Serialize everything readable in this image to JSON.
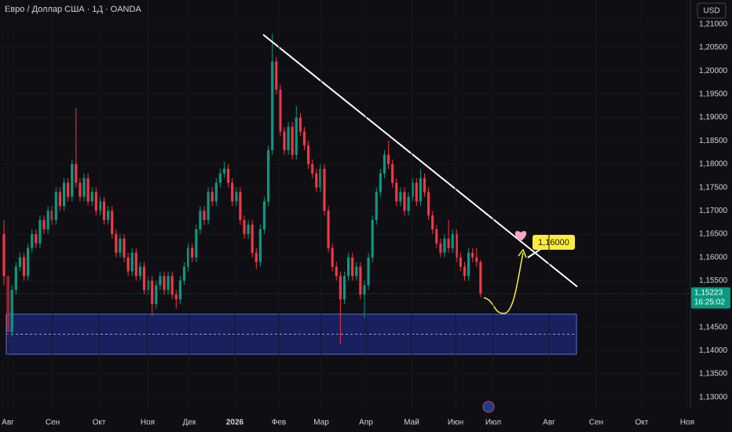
{
  "chart_data": {
    "type": "candlestick",
    "title": "Евро / Доллар США · 1Д · OANDA",
    "currency": "USD",
    "up_color": "#089981",
    "down_color": "#f23645",
    "last_price_label": "1,15223",
    "countdown": "16:25:02",
    "target_label": "1,16000",
    "xlabels": [
      "Авг",
      "Сен",
      "Окт",
      "Ноя",
      "Дек",
      "2026",
      "Фев",
      "Мар",
      "Апр",
      "Май",
      "Июн",
      "Июл",
      "Авг",
      "Сен",
      "Окт",
      "Ноя"
    ],
    "ylim": [
      1.1276,
      1.2152
    ],
    "yticks": [
      {
        "value": 1.13,
        "label": "1,13000"
      },
      {
        "value": 1.135,
        "label": "1,13500"
      },
      {
        "value": 1.14,
        "label": "1,14000"
      },
      {
        "value": 1.145,
        "label": "1,14500"
      },
      {
        "value": 1.15,
        "label": "1,15000"
      },
      {
        "value": 1.155,
        "label": "1,15500"
      },
      {
        "value": 1.16,
        "label": "1,16000"
      },
      {
        "value": 1.165,
        "label": "1,16500"
      },
      {
        "value": 1.17,
        "label": "1,17000"
      },
      {
        "value": 1.175,
        "label": "1,17500"
      },
      {
        "value": 1.18,
        "label": "1,18000"
      },
      {
        "value": 1.185,
        "label": "1,18500"
      },
      {
        "value": 1.19,
        "label": "1,19000"
      },
      {
        "value": 1.195,
        "label": "1,19500"
      },
      {
        "value": 1.2,
        "label": "1,20000"
      },
      {
        "value": 1.205,
        "label": "1,20500"
      },
      {
        "value": 1.21,
        "label": "1,21000"
      }
    ],
    "candles": [
      [
        1.165,
        1.168,
        1.154,
        1.156
      ],
      [
        1.156,
        1.157,
        1.141,
        1.144
      ],
      [
        1.144,
        1.154,
        1.143,
        1.153
      ],
      [
        1.153,
        1.159,
        1.152,
        1.158
      ],
      [
        1.158,
        1.161,
        1.157,
        1.16
      ],
      [
        1.16,
        1.161,
        1.155,
        1.156
      ],
      [
        1.156,
        1.163,
        1.155,
        1.162
      ],
      [
        1.162,
        1.166,
        1.161,
        1.165
      ],
      [
        1.165,
        1.166,
        1.162,
        1.163
      ],
      [
        1.163,
        1.169,
        1.162,
        1.168
      ],
      [
        1.168,
        1.169,
        1.165,
        1.166
      ],
      [
        1.166,
        1.171,
        1.165,
        1.17
      ],
      [
        1.17,
        1.171,
        1.167,
        1.168
      ],
      [
        1.168,
        1.175,
        1.167,
        1.174
      ],
      [
        1.174,
        1.175,
        1.17,
        1.171
      ],
      [
        1.171,
        1.177,
        1.17,
        1.176
      ],
      [
        1.176,
        1.177,
        1.172,
        1.173
      ],
      [
        1.173,
        1.181,
        1.172,
        1.18
      ],
      [
        1.18,
        1.192,
        1.175,
        1.176
      ],
      [
        1.176,
        1.177,
        1.172,
        1.173
      ],
      [
        1.173,
        1.178,
        1.172,
        1.177
      ],
      [
        1.177,
        1.178,
        1.171,
        1.172
      ],
      [
        1.172,
        1.175,
        1.171,
        1.174
      ],
      [
        1.174,
        1.175,
        1.169,
        1.17
      ],
      [
        1.17,
        1.173,
        1.169,
        1.172
      ],
      [
        1.172,
        1.173,
        1.167,
        1.168
      ],
      [
        1.168,
        1.171,
        1.167,
        1.17
      ],
      [
        1.17,
        1.171,
        1.164,
        1.165
      ],
      [
        1.165,
        1.166,
        1.16,
        1.161
      ],
      [
        1.161,
        1.165,
        1.16,
        1.164
      ],
      [
        1.164,
        1.165,
        1.159,
        1.16
      ],
      [
        1.16,
        1.161,
        1.156,
        1.157
      ],
      [
        1.157,
        1.162,
        1.156,
        1.161
      ],
      [
        1.161,
        1.162,
        1.155,
        1.156
      ],
      [
        1.156,
        1.159,
        1.155,
        1.158
      ],
      [
        1.158,
        1.159,
        1.152,
        1.153
      ],
      [
        1.153,
        1.156,
        1.152,
        1.155
      ],
      [
        1.155,
        1.156,
        1.1475,
        1.15
      ],
      [
        1.15,
        1.155,
        1.149,
        1.154
      ],
      [
        1.154,
        1.157,
        1.153,
        1.156
      ],
      [
        1.156,
        1.157,
        1.152,
        1.153
      ],
      [
        1.153,
        1.157,
        1.152,
        1.156
      ],
      [
        1.156,
        1.157,
        1.151,
        1.152
      ],
      [
        1.152,
        1.153,
        1.149,
        1.151
      ],
      [
        1.151,
        1.156,
        1.15,
        1.155
      ],
      [
        1.155,
        1.159,
        1.154,
        1.158
      ],
      [
        1.158,
        1.163,
        1.157,
        1.162
      ],
      [
        1.162,
        1.163,
        1.159,
        1.16
      ],
      [
        1.16,
        1.167,
        1.159,
        1.166
      ],
      [
        1.166,
        1.171,
        1.165,
        1.17
      ],
      [
        1.17,
        1.171,
        1.167,
        1.168
      ],
      [
        1.168,
        1.175,
        1.167,
        1.174
      ],
      [
        1.174,
        1.175,
        1.171,
        1.172
      ],
      [
        1.172,
        1.177,
        1.171,
        1.176
      ],
      [
        1.176,
        1.179,
        1.175,
        1.178
      ],
      [
        1.178,
        1.1805,
        1.177,
        1.179
      ],
      [
        1.179,
        1.18,
        1.175,
        1.176
      ],
      [
        1.176,
        1.177,
        1.171,
        1.172
      ],
      [
        1.172,
        1.175,
        1.171,
        1.174
      ],
      [
        1.174,
        1.175,
        1.167,
        1.168
      ],
      [
        1.168,
        1.169,
        1.164,
        1.165
      ],
      [
        1.165,
        1.168,
        1.164,
        1.167
      ],
      [
        1.167,
        1.168,
        1.16,
        1.161
      ],
      [
        1.161,
        1.162,
        1.1575,
        1.159
      ],
      [
        1.159,
        1.167,
        1.158,
        1.166
      ],
      [
        1.166,
        1.173,
        1.165,
        1.172
      ],
      [
        1.172,
        1.184,
        1.171,
        1.183
      ],
      [
        1.183,
        1.208,
        1.182,
        1.202
      ],
      [
        1.202,
        1.203,
        1.195,
        1.196
      ],
      [
        1.196,
        1.197,
        1.186,
        1.187
      ],
      [
        1.187,
        1.188,
        1.182,
        1.183
      ],
      [
        1.183,
        1.189,
        1.182,
        1.188
      ],
      [
        1.188,
        1.189,
        1.181,
        1.182
      ],
      [
        1.182,
        1.1925,
        1.181,
        1.19
      ],
      [
        1.19,
        1.191,
        1.186,
        1.187
      ],
      [
        1.187,
        1.188,
        1.183,
        1.184
      ],
      [
        1.184,
        1.185,
        1.179,
        1.18
      ],
      [
        1.18,
        1.181,
        1.177,
        1.178
      ],
      [
        1.178,
        1.179,
        1.174,
        1.175
      ],
      [
        1.175,
        1.18,
        1.174,
        1.179
      ],
      [
        1.179,
        1.18,
        1.169,
        1.17
      ],
      [
        1.17,
        1.171,
        1.161,
        1.162
      ],
      [
        1.162,
        1.163,
        1.157,
        1.158
      ],
      [
        1.158,
        1.159,
        1.155,
        1.156
      ],
      [
        1.156,
        1.157,
        1.1415,
        1.151
      ],
      [
        1.151,
        1.157,
        1.15,
        1.156
      ],
      [
        1.156,
        1.161,
        1.155,
        1.16
      ],
      [
        1.16,
        1.161,
        1.155,
        1.156
      ],
      [
        1.156,
        1.159,
        1.155,
        1.158
      ],
      [
        1.158,
        1.159,
        1.151,
        1.152
      ],
      [
        1.152,
        1.155,
        1.147,
        1.154
      ],
      [
        1.154,
        1.161,
        1.153,
        1.16
      ],
      [
        1.16,
        1.169,
        1.159,
        1.168
      ],
      [
        1.168,
        1.175,
        1.167,
        1.174
      ],
      [
        1.174,
        1.179,
        1.173,
        1.178
      ],
      [
        1.178,
        1.183,
        1.177,
        1.182
      ],
      [
        1.182,
        1.185,
        1.179,
        1.18
      ],
      [
        1.18,
        1.181,
        1.175,
        1.176
      ],
      [
        1.176,
        1.177,
        1.171,
        1.172
      ],
      [
        1.172,
        1.175,
        1.171,
        1.174
      ],
      [
        1.174,
        1.175,
        1.169,
        1.17
      ],
      [
        1.17,
        1.174,
        1.169,
        1.173
      ],
      [
        1.173,
        1.177,
        1.172,
        1.176
      ],
      [
        1.176,
        1.177,
        1.171,
        1.172
      ],
      [
        1.172,
        1.179,
        1.171,
        1.177
      ],
      [
        1.177,
        1.178,
        1.173,
        1.174
      ],
      [
        1.174,
        1.175,
        1.168,
        1.169
      ],
      [
        1.169,
        1.17,
        1.165,
        1.166
      ],
      [
        1.166,
        1.167,
        1.162,
        1.163
      ],
      [
        1.163,
        1.164,
        1.16,
        1.161
      ],
      [
        1.161,
        1.165,
        1.16,
        1.164
      ],
      [
        1.164,
        1.168,
        1.161,
        1.162
      ],
      [
        1.162,
        1.166,
        1.161,
        1.165
      ],
      [
        1.165,
        1.166,
        1.159,
        1.16
      ],
      [
        1.16,
        1.161,
        1.157,
        1.158
      ],
      [
        1.158,
        1.159,
        1.155,
        1.156
      ],
      [
        1.156,
        1.162,
        1.155,
        1.161
      ],
      [
        1.161,
        1.162,
        1.159,
        1.16
      ],
      [
        1.16,
        1.162,
        1.158,
        1.159
      ],
      [
        1.159,
        1.1595,
        1.1515,
        1.15223
      ]
    ]
  }
}
